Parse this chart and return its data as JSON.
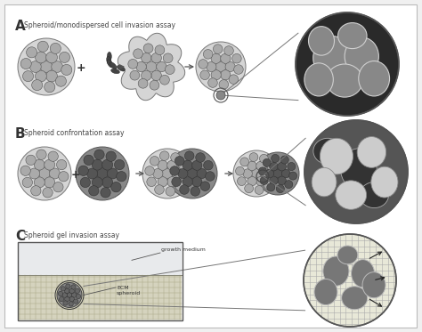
{
  "title_A": "Spheroid/monodispersed cell invasion assay",
  "title_B": "Spheroid confrontation assay",
  "title_C": "Spheroid gel invasion assay",
  "label_A": "A",
  "label_B": "B",
  "label_C": "C",
  "label_growth_medium": "growth medium",
  "label_ECM": "ECM\nspheroid",
  "bg_color": "#f0f0f0",
  "panel_bg": "#ffffff",
  "cell_gray": "#999999",
  "cell_border": "#555555",
  "sph_bg_light": "#d8d8d8",
  "sph_bg_dark": "#888888",
  "cell_dark_fill": "#666666",
  "confrontation_bg": "#777777",
  "confrontation_cell": "#555555",
  "gel_fill": "#d8d8c8",
  "water_fill": "#e8eef0",
  "zoom_A_bg": "#333333",
  "zoom_A_cell": "#999999",
  "zoom_B_bg": "#777777",
  "zoom_B_light_cell": "#cccccc",
  "zoom_B_dark_cell": "#555555",
  "zoom_C_bg": "#ddddcc",
  "zoom_C_cell": "#888888"
}
